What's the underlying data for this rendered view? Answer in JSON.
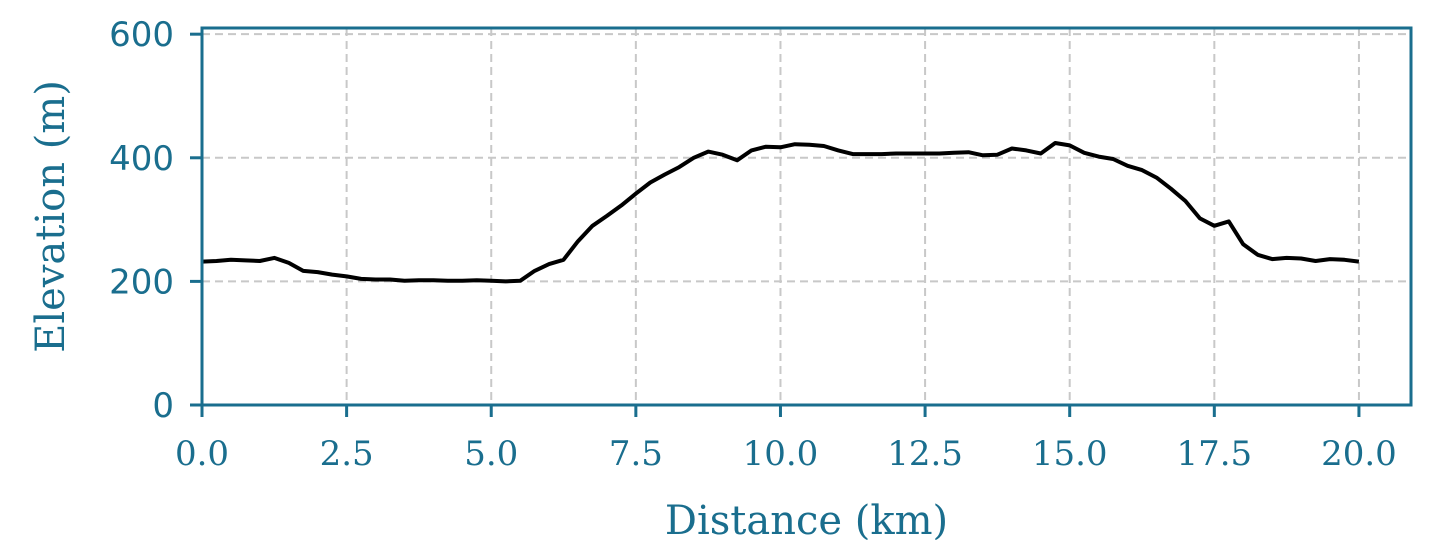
{
  "chart_data": {
    "type": "line",
    "xlabel": "Distance (km)",
    "ylabel": "Elevation (m)",
    "xlim": [
      0.0,
      20.9
    ],
    "ylim": [
      0,
      610
    ],
    "xticks": [
      0.0,
      2.5,
      5.0,
      7.5,
      10.0,
      12.5,
      15.0,
      17.5,
      20.0
    ],
    "xtick_labels": [
      "0.0",
      "2.5",
      "5.0",
      "7.5",
      "10.0",
      "12.5",
      "15.0",
      "17.5",
      "20.0"
    ],
    "yticks": [
      0,
      200,
      400,
      600
    ],
    "ytick_labels": [
      "0",
      "200",
      "400",
      "600"
    ],
    "grid": true,
    "colors": {
      "axis": "#1a6e8e",
      "line": "#000000",
      "grid": "#c8c8c8"
    },
    "series": [
      {
        "x": [
          0.0,
          0.25,
          0.5,
          0.75,
          1.0,
          1.25,
          1.5,
          1.75,
          2.0,
          2.25,
          2.5,
          2.75,
          3.0,
          3.25,
          3.5,
          3.75,
          4.0,
          4.25,
          4.5,
          4.75,
          5.0,
          5.25,
          5.5,
          5.75,
          6.0,
          6.25,
          6.5,
          6.75,
          7.0,
          7.25,
          7.5,
          7.75,
          8.0,
          8.25,
          8.5,
          8.75,
          9.0,
          9.25,
          9.5,
          9.75,
          10.0,
          10.25,
          10.5,
          10.75,
          11.0,
          11.25,
          11.5,
          11.75,
          12.0,
          12.25,
          12.5,
          12.75,
          13.0,
          13.25,
          13.5,
          13.75,
          14.0,
          14.25,
          14.5,
          14.75,
          15.0,
          15.25,
          15.5,
          15.75,
          16.0,
          16.25,
          16.5,
          16.75,
          17.0,
          17.25,
          17.5,
          17.75,
          18.0,
          18.25,
          18.5,
          18.75,
          19.0,
          19.25,
          19.5,
          19.75,
          20.0
        ],
        "values": [
          232,
          233,
          235,
          234,
          233,
          238,
          230,
          217,
          215,
          211,
          208,
          204,
          203,
          203,
          201,
          202,
          202,
          201,
          201,
          202,
          201,
          200,
          201,
          217,
          228,
          235,
          265,
          290,
          306,
          323,
          342,
          360,
          373,
          385,
          400,
          410,
          405,
          396,
          412,
          418,
          417,
          422,
          421,
          419,
          412,
          406,
          406,
          406,
          407,
          407,
          407,
          407,
          408,
          409,
          404,
          405,
          415,
          412,
          407,
          424,
          420,
          408,
          402,
          398,
          387,
          380,
          368,
          350,
          330,
          302,
          290,
          297,
          260,
          243,
          236,
          238,
          237,
          233,
          236,
          235,
          232
        ]
      }
    ]
  }
}
